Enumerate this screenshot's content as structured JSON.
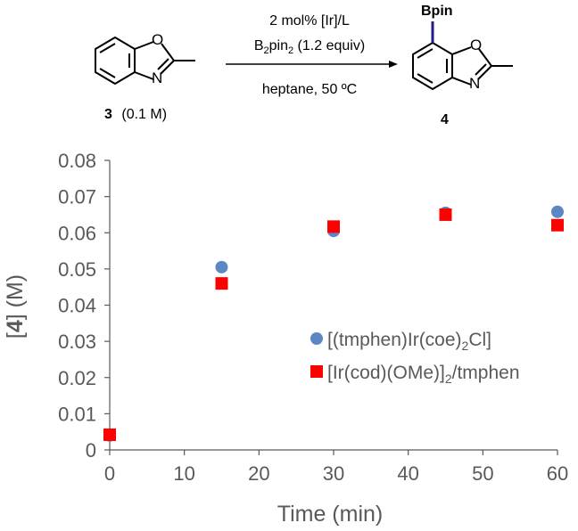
{
  "scheme": {
    "reactant_number": "3",
    "reactant_conc": "(0.1 M)",
    "product_number": "4",
    "reagent_line1": "2 mol% [Ir]/L",
    "reagent_line2_pre": "B",
    "reagent_line2_sub": "2",
    "reagent_line2_mid": "pin",
    "reagent_line2_sub2": "2",
    "reagent_line2_post": " (1.2 equiv)",
    "conditions": "heptane, 50 ºC",
    "bpin_label": "Bpin",
    "atom_O": "O",
    "atom_N": "N",
    "bpin_color": "#1f1f8a"
  },
  "chart_data": {
    "type": "scatter",
    "xlabel": "Time (min)",
    "ylabel_pre": "[",
    "ylabel_bold": "4",
    "ylabel_post": "] (M)",
    "xlim": [
      0,
      60
    ],
    "ylim": [
      0,
      0.08
    ],
    "x_ticks": [
      "0",
      "10",
      "20",
      "30",
      "40",
      "50",
      "60"
    ],
    "y_ticks": [
      "0",
      "0.01",
      "0.02",
      "0.03",
      "0.04",
      "0.05",
      "0.06",
      "0.07",
      "0.08"
    ],
    "series": [
      {
        "name_pre": "[(tmphen)Ir(coe)",
        "name_sub": "2",
        "name_post": "Cl]",
        "marker": "circle",
        "color": "#5b87c5",
        "x": [
          0,
          15,
          30,
          45,
          60
        ],
        "y": [
          0.004,
          0.0505,
          0.0605,
          0.0655,
          0.0658
        ]
      },
      {
        "name_pre": "[Ir(cod)(OMe)]",
        "name_sub": "2",
        "name_post": "/tmphen",
        "marker": "square",
        "color": "#ff0000",
        "x": [
          0,
          15,
          30,
          45,
          60
        ],
        "y": [
          0.0042,
          0.046,
          0.0617,
          0.065,
          0.0621
        ]
      }
    ],
    "legend_position": "right"
  }
}
